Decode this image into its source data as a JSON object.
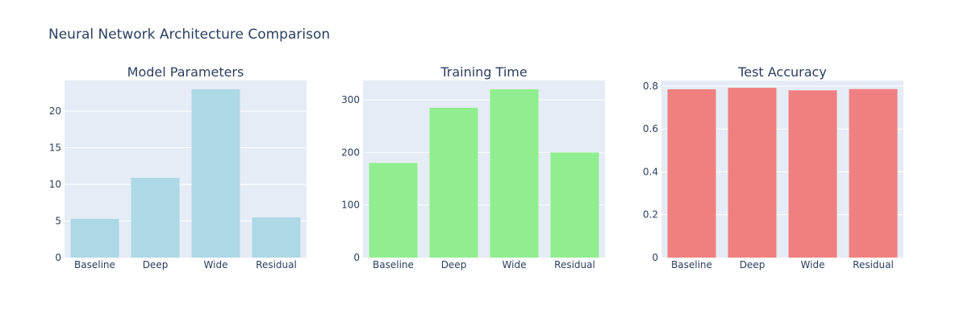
{
  "figure_title": "Neural Network Architecture Comparison",
  "chart_data": [
    {
      "type": "bar",
      "title": "Model Parameters",
      "categories": [
        "Baseline",
        "Deep",
        "Wide",
        "Residual"
      ],
      "values": [
        5.3,
        10.9,
        23.0,
        5.5
      ],
      "ylim": [
        0,
        24.2
      ],
      "yticks": [
        0,
        5,
        10,
        15,
        20
      ],
      "color": "#add8e6",
      "grid": true
    },
    {
      "type": "bar",
      "title": "Training Time",
      "categories": [
        "Baseline",
        "Deep",
        "Wide",
        "Residual"
      ],
      "values": [
        180,
        285,
        320,
        200
      ],
      "ylim": [
        0,
        336.8
      ],
      "yticks": [
        0,
        100,
        200,
        300
      ],
      "color": "#90ee90",
      "grid": true
    },
    {
      "type": "bar",
      "title": "Test Accuracy",
      "categories": [
        "Baseline",
        "Deep",
        "Wide",
        "Residual"
      ],
      "values": [
        0.785,
        0.792,
        0.78,
        0.786
      ],
      "ylim": [
        0,
        0.826
      ],
      "yticks": [
        0,
        0.2,
        0.4,
        0.6,
        0.8
      ],
      "color": "#f08080",
      "grid": true
    }
  ]
}
